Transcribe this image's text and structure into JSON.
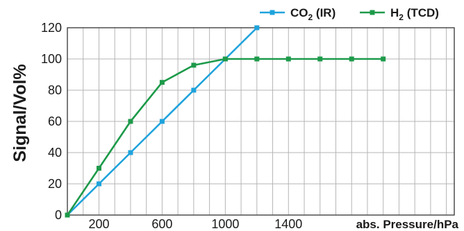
{
  "chart_data": {
    "type": "line",
    "xlabel": "abs. Pressure/hPa",
    "ylabel": "Signal/Vol%",
    "xlim": [
      0,
      2450
    ],
    "ylim": [
      0,
      120
    ],
    "x_ticks": [
      {
        "value": 200,
        "label": "200"
      },
      {
        "value": 600,
        "label": "600"
      },
      {
        "value": 1000,
        "label": "1000"
      },
      {
        "value": 1400,
        "label": "1400"
      }
    ],
    "y_ticks": [
      {
        "value": 0,
        "label": "0"
      },
      {
        "value": 20,
        "label": "20"
      },
      {
        "value": 40,
        "label": "40"
      },
      {
        "value": 60,
        "label": "60"
      },
      {
        "value": 80,
        "label": "80"
      },
      {
        "value": 100,
        "label": "100"
      },
      {
        "value": 120,
        "label": "120"
      }
    ],
    "grid": true,
    "legend": "top-right",
    "series": [
      {
        "name": "CO2 (IR)",
        "label_main": "CO",
        "label_sub": "2",
        "label_tail": " (IR)",
        "color": "#1fa3dc",
        "points": [
          [
            0,
            0
          ],
          [
            200,
            20
          ],
          [
            400,
            40
          ],
          [
            600,
            60
          ],
          [
            800,
            80
          ],
          [
            1000,
            100
          ],
          [
            1200,
            120
          ]
        ]
      },
      {
        "name": "H2 (TCD)",
        "label_main": "H",
        "label_sub": "2",
        "label_tail": " (TCD)",
        "color": "#1d9a4a",
        "points": [
          [
            0,
            0
          ],
          [
            200,
            30
          ],
          [
            400,
            60
          ],
          [
            600,
            85
          ],
          [
            800,
            96
          ],
          [
            1000,
            100
          ],
          [
            1200,
            100
          ],
          [
            1400,
            100
          ],
          [
            1600,
            100
          ],
          [
            1800,
            100
          ],
          [
            2000,
            100
          ]
        ]
      }
    ]
  }
}
